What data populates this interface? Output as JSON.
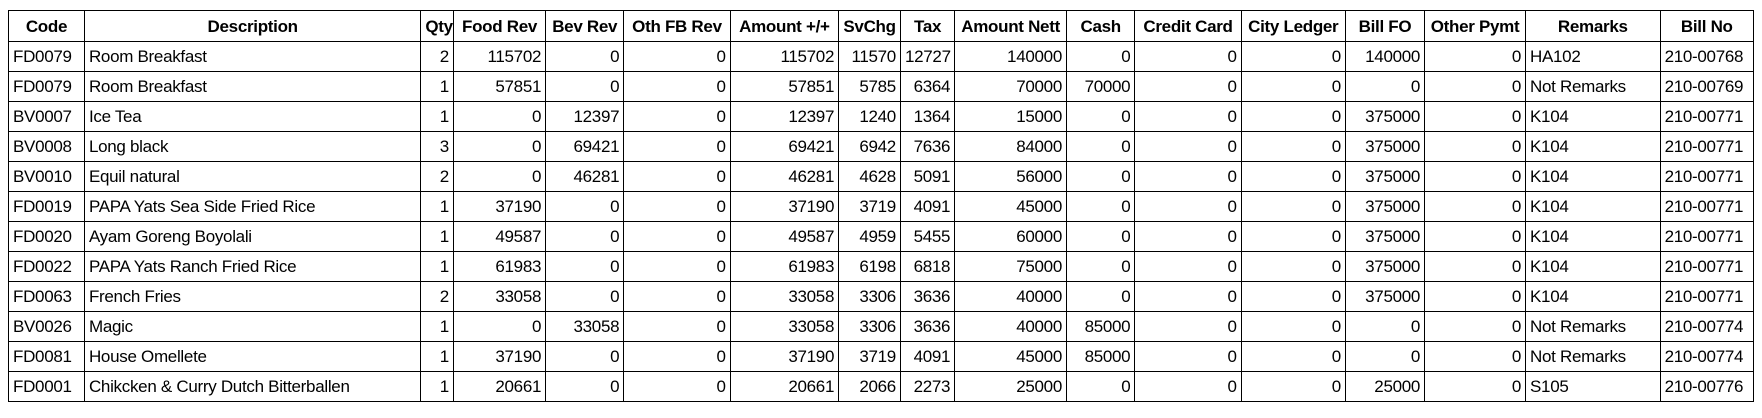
{
  "table": {
    "headers": [
      "Code",
      "Description",
      "Qty",
      "Food Rev",
      "Bev Rev",
      "Oth FB Rev",
      "Amount +/+",
      "SvChg",
      "Tax",
      "Amount Nett",
      "Cash",
      "Credit Card",
      "City Ledger",
      "Bill FO",
      "Other Pymt",
      "Remarks",
      "Bill No"
    ],
    "rows": [
      [
        "FD0079",
        "Room Breakfast",
        "2",
        "115702",
        "0",
        "0",
        "115702",
        "11570",
        "12727",
        "140000",
        "0",
        "0",
        "0",
        "140000",
        "0",
        "HA102",
        "210-00768"
      ],
      [
        "FD0079",
        "Room Breakfast",
        "1",
        "57851",
        "0",
        "0",
        "57851",
        "5785",
        "6364",
        "70000",
        "70000",
        "0",
        "0",
        "0",
        "0",
        "Not Remarks",
        "210-00769"
      ],
      [
        "BV0007",
        "Ice Tea",
        "1",
        "0",
        "12397",
        "0",
        "12397",
        "1240",
        "1364",
        "15000",
        "0",
        "0",
        "0",
        "375000",
        "0",
        "K104",
        "210-00771"
      ],
      [
        "BV0008",
        "Long black",
        "3",
        "0",
        "69421",
        "0",
        "69421",
        "6942",
        "7636",
        "84000",
        "0",
        "0",
        "0",
        "375000",
        "0",
        "K104",
        "210-00771"
      ],
      [
        "BV0010",
        "Equil natural",
        "2",
        "0",
        "46281",
        "0",
        "46281",
        "4628",
        "5091",
        "56000",
        "0",
        "0",
        "0",
        "375000",
        "0",
        "K104",
        "210-00771"
      ],
      [
        "FD0019",
        "PAPA Yats Sea Side Fried Rice",
        "1",
        "37190",
        "0",
        "0",
        "37190",
        "3719",
        "4091",
        "45000",
        "0",
        "0",
        "0",
        "375000",
        "0",
        "K104",
        "210-00771"
      ],
      [
        "FD0020",
        "Ayam Goreng Boyolali",
        "1",
        "49587",
        "0",
        "0",
        "49587",
        "4959",
        "5455",
        "60000",
        "0",
        "0",
        "0",
        "375000",
        "0",
        "K104",
        "210-00771"
      ],
      [
        "FD0022",
        "PAPA Yats Ranch Fried Rice",
        "1",
        "61983",
        "0",
        "0",
        "61983",
        "6198",
        "6818",
        "75000",
        "0",
        "0",
        "0",
        "375000",
        "0",
        "K104",
        "210-00771"
      ],
      [
        "FD0063",
        "French Fries",
        "2",
        "33058",
        "0",
        "0",
        "33058",
        "3306",
        "3636",
        "40000",
        "0",
        "0",
        "0",
        "375000",
        "0",
        "K104",
        "210-00771"
      ],
      [
        "BV0026",
        "Magic",
        "1",
        "0",
        "33058",
        "0",
        "33058",
        "3306",
        "3636",
        "40000",
        "85000",
        "0",
        "0",
        "0",
        "0",
        "Not Remarks",
        "210-00774"
      ],
      [
        "FD0081",
        "House Omellete",
        "1",
        "37190",
        "0",
        "0",
        "37190",
        "3719",
        "4091",
        "45000",
        "85000",
        "0",
        "0",
        "0",
        "0",
        "Not Remarks",
        "210-00774"
      ],
      [
        "FD0001",
        "Chikcken & Curry Dutch Bitterballen",
        "1",
        "20661",
        "0",
        "0",
        "20661",
        "2066",
        "2273",
        "25000",
        "0",
        "0",
        "0",
        "25000",
        "0",
        "S105",
        "210-00776"
      ]
    ]
  }
}
